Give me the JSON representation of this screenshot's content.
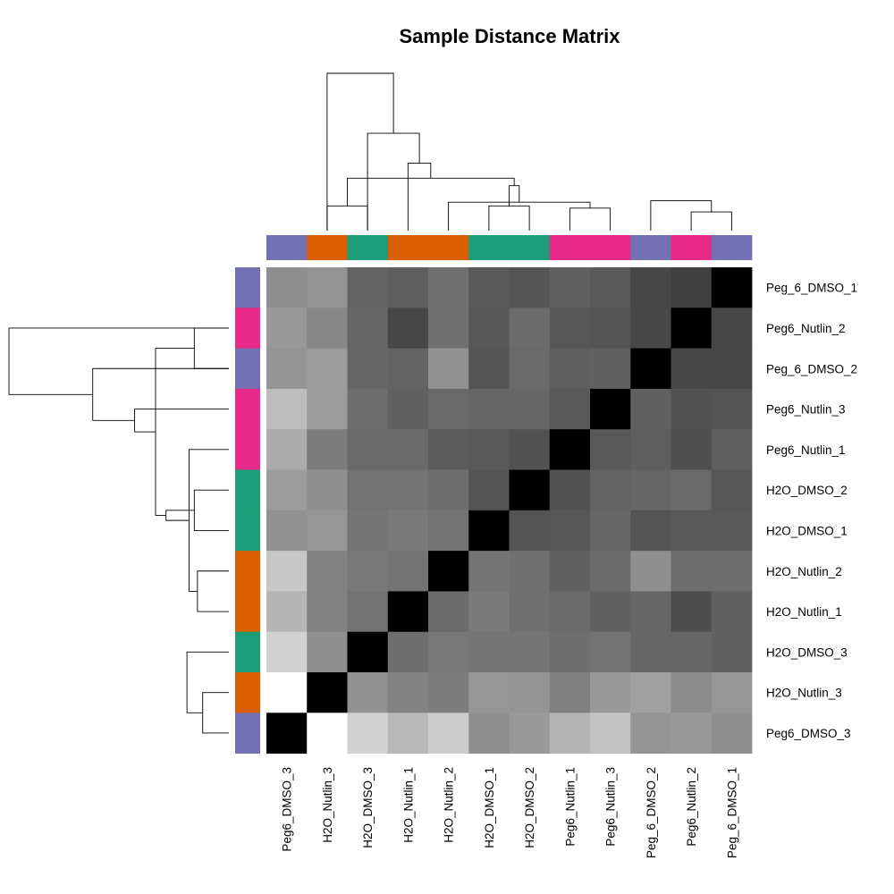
{
  "chart_data": {
    "type": "heatmap",
    "title": "Sample Distance Matrix",
    "grid": false,
    "legend": "none",
    "row_labels": [
      "Peg_6_DMSO_1",
      "Peg6_Nutlin_2",
      "Peg_6_DMSO_2",
      "Peg6_Nutlin_3",
      "Peg6_Nutlin_1",
      "H2O_DMSO_2",
      "H2O_DMSO_1",
      "H2O_Nutlin_2",
      "H2O_Nutlin_1",
      "H2O_DMSO_3",
      "H2O_Nutlin_3",
      "Peg6_DMSO_3"
    ],
    "col_labels": [
      "Peg6_DMSO_3",
      "H2O_Nutlin_3",
      "H2O_DMSO_3",
      "H2O_Nutlin_1",
      "H2O_Nutlin_2",
      "H2O_DMSO_1",
      "H2O_DMSO_2",
      "Peg6_Nutlin_1",
      "Peg6_Nutlin_3",
      "Peg_6_DMSO_2",
      "Peg6_Nutlin_2",
      "Peg_6_DMSO_1"
    ],
    "color_scale": [
      "#000000",
      "#ffffff"
    ],
    "values": [
      [
        0.56,
        0.58,
        0.39,
        0.37,
        0.44,
        0.35,
        0.33,
        0.38,
        0.35,
        0.28,
        0.25,
        0.0
      ],
      [
        0.6,
        0.53,
        0.4,
        0.28,
        0.44,
        0.34,
        0.42,
        0.34,
        0.33,
        0.28,
        0.0,
        0.28
      ],
      [
        0.58,
        0.61,
        0.4,
        0.39,
        0.57,
        0.33,
        0.41,
        0.37,
        0.38,
        0.0,
        0.28,
        0.28
      ],
      [
        0.74,
        0.61,
        0.43,
        0.38,
        0.41,
        0.4,
        0.4,
        0.35,
        0.0,
        0.38,
        0.32,
        0.33
      ],
      [
        0.67,
        0.49,
        0.41,
        0.41,
        0.36,
        0.35,
        0.32,
        0.0,
        0.35,
        0.37,
        0.31,
        0.37
      ],
      [
        0.61,
        0.56,
        0.45,
        0.45,
        0.43,
        0.33,
        0.0,
        0.32,
        0.39,
        0.4,
        0.41,
        0.34
      ],
      [
        0.57,
        0.59,
        0.46,
        0.48,
        0.45,
        0.0,
        0.33,
        0.34,
        0.4,
        0.33,
        0.35,
        0.35
      ],
      [
        0.78,
        0.51,
        0.47,
        0.45,
        0.0,
        0.46,
        0.44,
        0.38,
        0.42,
        0.56,
        0.43,
        0.43
      ],
      [
        0.71,
        0.51,
        0.45,
        0.0,
        0.42,
        0.48,
        0.44,
        0.42,
        0.38,
        0.4,
        0.3,
        0.38
      ],
      [
        0.82,
        0.56,
        0.0,
        0.43,
        0.47,
        0.46,
        0.46,
        0.43,
        0.45,
        0.4,
        0.4,
        0.38
      ],
      [
        1.0,
        0.0,
        0.57,
        0.51,
        0.49,
        0.59,
        0.58,
        0.5,
        0.6,
        0.63,
        0.55,
        0.59
      ],
      [
        0.0,
        1.0,
        0.82,
        0.72,
        0.8,
        0.56,
        0.6,
        0.7,
        0.76,
        0.58,
        0.6,
        0.56
      ]
    ],
    "column_annotation_colors": [
      "#7570b3",
      "#d95f02",
      "#1b9e77",
      "#d95f02",
      "#d95f02",
      "#1b9e77",
      "#1b9e77",
      "#e7298a",
      "#e7298a",
      "#7570b3",
      "#e7298a",
      "#7570b3"
    ],
    "row_annotation_colors": [
      "#7570b3",
      "#e7298a",
      "#7570b3",
      "#e7298a",
      "#e7298a",
      "#1b9e77",
      "#1b9e77",
      "#d95f02",
      "#d95f02",
      "#1b9e77",
      "#d95f02",
      "#7570b3"
    ],
    "dendrogram_merges": [
      [
        10,
        11,
        0.25
      ],
      [
        7,
        8,
        0.3
      ],
      [
        12,
        9,
        0.4
      ],
      [
        5,
        6,
        0.33
      ],
      [
        13,
        4,
        0.38
      ],
      [
        1,
        2,
        0.33
      ],
      [
        15,
        16,
        0.6
      ],
      [
        17,
        18,
        0.7
      ],
      [
        3,
        19,
        0.9
      ],
      [
        20,
        2,
        1.3
      ],
      [
        21,
        1,
        2.1
      ]
    ]
  }
}
